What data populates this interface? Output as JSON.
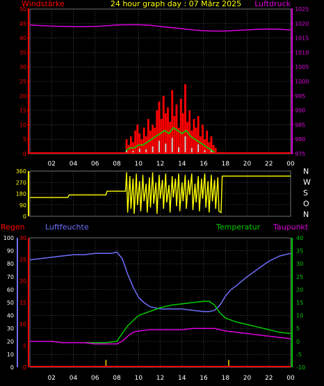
{
  "header": {
    "left_label": "Windstärke",
    "title": "24 hour graph day : 07 März 2025",
    "right_label": "Luftdruck"
  },
  "colors": {
    "wind": "#ff0000",
    "wind_avg": "#00dd00",
    "wind_low": "#d0d0d0",
    "pressure": "#dd00dd",
    "direction": "#ffff00",
    "rain": "#ff0000",
    "humidity": "#7070ff",
    "temperature": "#00cc00",
    "dewpoint": "#dd00dd",
    "grid": "#707070",
    "axis_text": "#ffffff"
  },
  "x_axis": {
    "ticks": [
      "02",
      "04",
      "06",
      "08",
      "10",
      "12",
      "14",
      "16",
      "18",
      "20",
      "22",
      "00"
    ]
  },
  "chart_data": [
    {
      "type": "bar",
      "title": "24 hour graph day : 07 März 2025",
      "ylabel": "Windstärke",
      "y2label": "Luftdruck",
      "ylim": [
        0,
        50
      ],
      "y2lim": [
        975,
        1025
      ],
      "left_ticks": [
        "0",
        "5",
        "10",
        "15",
        "20",
        "25",
        "30",
        "35",
        "40",
        "45",
        "50"
      ],
      "right_ticks": [
        "975",
        "980",
        "985",
        "990",
        "995",
        "1000",
        "1005",
        "1010",
        "1015",
        "1020",
        "1025"
      ],
      "series": [
        {
          "name": "Windstärke",
          "kind": "gust-bars",
          "x": [
            8.9,
            9.1,
            9.3,
            9.5,
            9.7,
            9.9,
            10.1,
            10.3,
            10.5,
            10.7,
            10.9,
            11.1,
            11.3,
            11.5,
            11.7,
            11.9,
            12.1,
            12.3,
            12.5,
            12.7,
            12.9,
            13.1,
            13.3,
            13.5,
            13.7,
            13.9,
            14.1,
            14.3,
            14.5,
            14.7,
            14.9,
            15.1,
            15.3,
            15.5,
            15.7,
            15.9,
            16.1,
            16.3,
            16.5,
            16.7,
            16.9,
            17.1
          ],
          "values": [
            5,
            3,
            6,
            4,
            8,
            10,
            7,
            5,
            9,
            6,
            12,
            8,
            10,
            9,
            15,
            18,
            12,
            20,
            14,
            16,
            11,
            22,
            13,
            17,
            9,
            19,
            14,
            24,
            11,
            15,
            8,
            12,
            9,
            13,
            6,
            10,
            5,
            8,
            4,
            6,
            3,
            2
          ]
        },
        {
          "name": "Windstärke Mittel",
          "kind": "line",
          "x": [
            8.8,
            9.2,
            9.6,
            10.0,
            10.4,
            10.8,
            11.2,
            11.6,
            12.0,
            12.4,
            12.8,
            13.2,
            13.6,
            14.0,
            14.4,
            14.8,
            15.2,
            15.6,
            16.0,
            16.4,
            16.8,
            17.2
          ],
          "values": [
            1,
            2,
            2,
            3,
            3,
            4,
            5,
            6,
            7,
            8,
            7,
            9,
            8,
            7,
            8,
            6,
            5,
            4,
            3,
            2,
            1,
            0
          ]
        },
        {
          "name": "Luftdruck",
          "axis": "right",
          "kind": "line",
          "x": [
            0,
            1,
            2,
            3,
            4,
            5,
            6,
            7,
            8,
            9,
            10,
            11,
            12,
            13,
            14,
            15,
            16,
            17,
            18,
            19,
            20,
            21,
            22,
            23,
            24
          ],
          "values": [
            1019.5,
            1019.3,
            1019.1,
            1019.0,
            1018.9,
            1018.9,
            1019.0,
            1019.2,
            1019.5,
            1019.6,
            1019.6,
            1019.4,
            1019.0,
            1018.6,
            1018.2,
            1017.8,
            1017.5,
            1017.4,
            1017.4,
            1017.6,
            1017.8,
            1018.0,
            1018.1,
            1018.0,
            1017.8
          ]
        }
      ]
    },
    {
      "type": "line",
      "ylim": [
        0,
        360
      ],
      "left_ticks": [
        "0",
        "90",
        "180",
        "270",
        "360"
      ],
      "right_ticks": [
        "N",
        "W",
        "S",
        "O",
        "N"
      ],
      "series": [
        {
          "name": "Windrichtung",
          "x": [
            0,
            3.5,
            3.6,
            7.0,
            7.1,
            8.8,
            8.9,
            9.0,
            9.2,
            9.3,
            9.5,
            9.6,
            9.8,
            9.9,
            10.1,
            10.2,
            10.4,
            10.5,
            10.7,
            10.8,
            11.0,
            11.1,
            11.3,
            11.4,
            11.6,
            11.7,
            11.9,
            12.0,
            12.2,
            12.3,
            12.5,
            12.6,
            12.8,
            12.9,
            13.1,
            13.2,
            13.4,
            13.5,
            13.7,
            13.8,
            14.0,
            14.1,
            14.3,
            14.4,
            14.6,
            14.7,
            14.9,
            15.0,
            15.2,
            15.3,
            15.5,
            15.6,
            15.8,
            15.9,
            16.1,
            16.2,
            16.4,
            16.5,
            16.7,
            16.8,
            17.0,
            17.1,
            17.3,
            17.4,
            17.6,
            17.7,
            24
          ],
          "values": [
            150,
            150,
            170,
            170,
            200,
            200,
            350,
            30,
            320,
            60,
            300,
            20,
            340,
            90,
            280,
            40,
            330,
            120,
            260,
            30,
            310,
            70,
            350,
            100,
            270,
            20,
            330,
            140,
            290,
            60,
            340,
            110,
            250,
            30,
            320,
            150,
            300,
            80,
            340,
            40,
            270,
            120,
            330,
            60,
            290,
            170,
            340,
            50,
            260,
            110,
            320,
            40,
            300,
            140,
            340,
            70,
            280,
            30,
            330,
            120,
            290,
            60,
            310,
            40,
            30,
            320,
            320
          ]
        }
      ]
    },
    {
      "type": "line",
      "left_labels": {
        "regen": "Regen",
        "luftfeuchte": "Luftfeuchte"
      },
      "right_labels": {
        "temperatur": "Temperatur",
        "taupunkt": "Taupunkt"
      },
      "humidity_ticks": [
        "0",
        "10",
        "20",
        "30",
        "40",
        "50",
        "60",
        "70",
        "80",
        "90",
        "100"
      ],
      "rain_ticks": [
        "0",
        "5",
        "10",
        "15",
        "20",
        "25",
        "30"
      ],
      "temp_ticks": [
        "-10",
        "-5",
        "0",
        "5",
        "10",
        "15",
        "20",
        "25",
        "30",
        "35",
        "40"
      ],
      "ylim_humidity": [
        0,
        100
      ],
      "ylim_rain": [
        0,
        30
      ],
      "ylim_temp": [
        -10,
        40
      ],
      "series": [
        {
          "name": "Luftfeuchte",
          "axis": "humidity",
          "x": [
            0,
            1,
            2,
            3,
            4,
            5,
            6,
            7,
            7.5,
            8,
            8.5,
            9,
            9.5,
            10,
            10.5,
            11,
            12,
            13,
            14,
            15,
            16,
            16.5,
            17,
            17.5,
            18,
            18.5,
            19,
            20,
            21,
            22,
            23,
            24
          ],
          "values": [
            83,
            84,
            85,
            86,
            87,
            87,
            88,
            88,
            88,
            89,
            84,
            72,
            62,
            54,
            50,
            47,
            45,
            45,
            45,
            44,
            43,
            43,
            44,
            48,
            55,
            60,
            63,
            70,
            76,
            82,
            86,
            88
          ]
        },
        {
          "name": "Temperatur",
          "axis": "temp",
          "x": [
            0,
            1,
            2,
            3,
            4,
            5,
            6,
            7,
            8,
            8.5,
            9,
            9.5,
            10,
            11,
            12,
            13,
            14,
            15,
            16,
            16.5,
            17,
            17.5,
            18,
            19,
            20,
            21,
            22,
            23,
            24
          ],
          "values": [
            0,
            0,
            0,
            -0.5,
            -0.5,
            -0.5,
            -0.5,
            -0.5,
            0,
            3,
            6,
            8,
            10,
            11.5,
            13,
            14,
            14.5,
            15,
            15.5,
            15.5,
            14,
            11,
            9,
            7.5,
            6.5,
            5.5,
            4.5,
            3.5,
            3
          ]
        },
        {
          "name": "Taupunkt",
          "axis": "temp",
          "x": [
            0,
            1,
            2,
            3,
            4,
            5,
            6,
            7,
            8,
            8.5,
            9,
            9.5,
            10,
            11,
            12,
            13,
            14,
            15,
            16,
            17,
            17.5,
            18,
            19,
            20,
            21,
            22,
            23,
            24
          ],
          "values": [
            0,
            0,
            0,
            -0.5,
            -0.5,
            -0.5,
            -1,
            -1,
            -1,
            0,
            2,
            3.5,
            4,
            4.5,
            4.5,
            4.5,
            4.5,
            5,
            5,
            5,
            4.5,
            4,
            3.5,
            3,
            2.5,
            2,
            1.5,
            1
          ]
        },
        {
          "name": "Regen",
          "axis": "rain",
          "kind": "bars",
          "x": [
            7.0,
            18.3
          ],
          "values": [
            1.7,
            1.7
          ]
        }
      ]
    }
  ]
}
